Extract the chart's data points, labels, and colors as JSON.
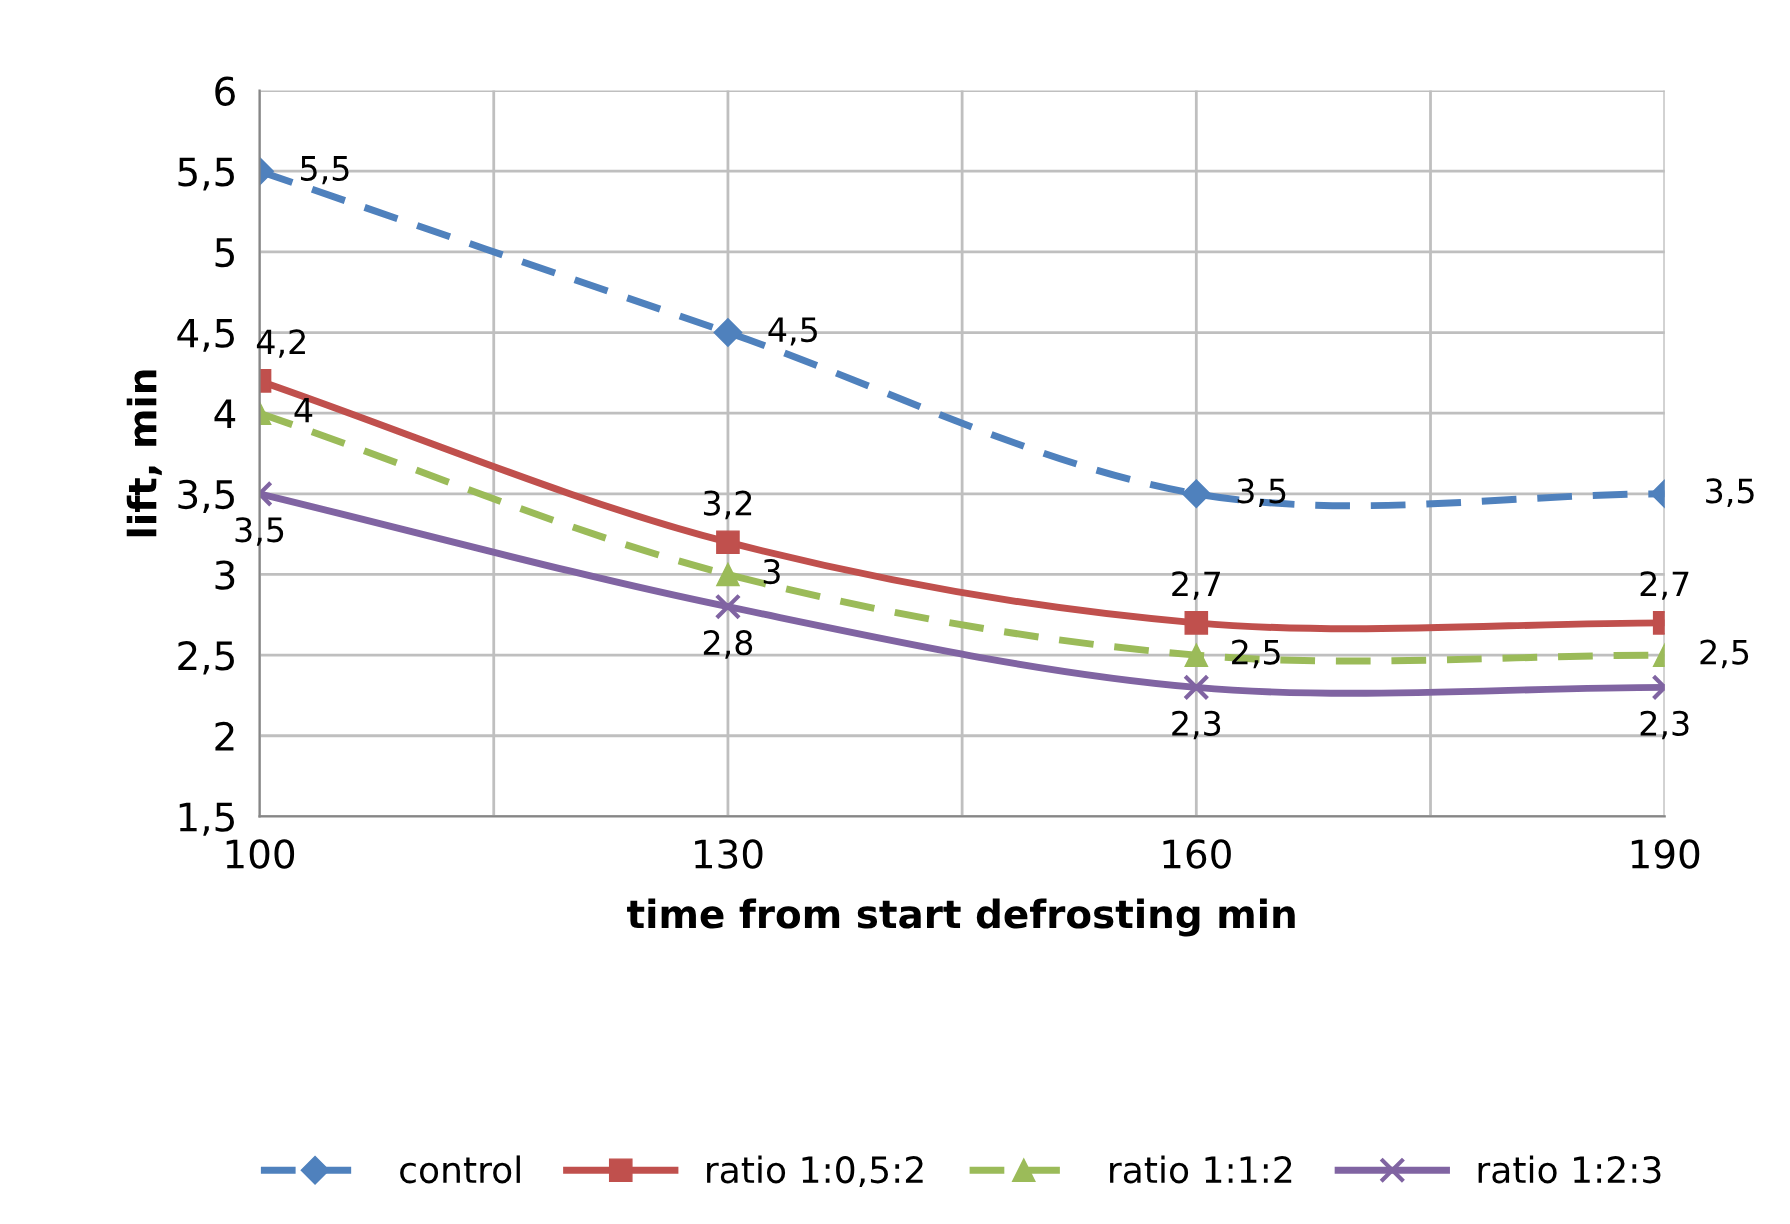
{
  "chart_data": {
    "type": "line",
    "xlabel": "time from start defrosting min",
    "ylabel": "lift, min",
    "x": [
      100,
      130,
      160,
      190
    ],
    "series": [
      {
        "name": "control",
        "color": "#4f81bd",
        "marker": "diamond",
        "line_style": "dashed",
        "values": [
          5.5,
          4.5,
          3.5,
          3.5
        ],
        "value_labels": [
          "5,5",
          "4,5",
          "3,5",
          "3,5"
        ]
      },
      {
        "name": "ratio 1:0,5:2",
        "color": "#c0504d",
        "marker": "square",
        "line_style": "solid",
        "values": [
          4.2,
          3.2,
          2.7,
          2.7
        ],
        "value_labels": [
          "4,2",
          "3,2",
          "2,7",
          "2,7"
        ]
      },
      {
        "name": "ratio 1:1:2",
        "color": "#9bbb59",
        "marker": "triangle",
        "line_style": "dashed",
        "values": [
          4,
          3,
          2.5,
          2.5
        ],
        "value_labels": [
          "4",
          "3",
          "2,5",
          "2,5"
        ]
      },
      {
        "name": "ratio 1:2:3",
        "color": "#8064a2",
        "marker": "cross",
        "line_style": "solid",
        "values": [
          3.5,
          2.8,
          2.3,
          2.3
        ],
        "value_labels": [
          "3,5",
          "2,8",
          "2,3",
          "2,3"
        ]
      }
    ],
    "xlim": [
      100,
      190
    ],
    "xticks": [
      100,
      {
        "value": 115,
        "label": null
      },
      130,
      {
        "value": 145,
        "label": null
      },
      160,
      {
        "value": 175,
        "label": null
      },
      190
    ],
    "ylim": [
      1.5,
      6
    ],
    "yticks": [
      {
        "value": 1.5,
        "label": "1,5"
      },
      2,
      {
        "value": 2.5,
        "label": "2,5"
      },
      3,
      {
        "value": 3.5,
        "label": "3,5"
      },
      4,
      {
        "value": 4.5,
        "label": "4,5"
      },
      5,
      {
        "value": 5.5,
        "label": "5,5"
      },
      6
    ],
    "grid": true,
    "legend": "bottom"
  }
}
